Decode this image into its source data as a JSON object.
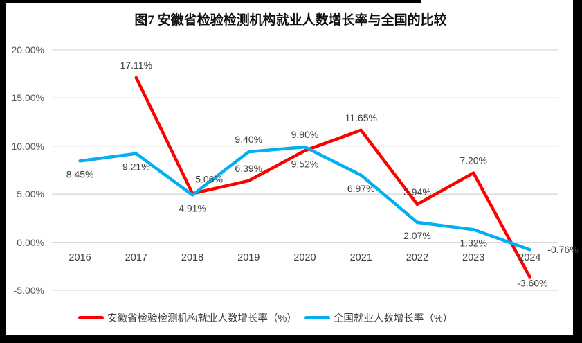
{
  "frame": {
    "color": "#000000",
    "background": "#FFFFFF"
  },
  "chart_data": {
    "type": "line",
    "title": "图7  安徽省检验检测机构就业人数增长率与全国的比较",
    "categories": [
      "2016",
      "2017",
      "2018",
      "2019",
      "2020",
      "2021",
      "2022",
      "2023",
      "2024"
    ],
    "series": [
      {
        "name": "安徽省检验检测机构就业人数增长率（%）",
        "color": "#FF0000",
        "values": [
          null,
          17.11,
          5.06,
          6.39,
          9.52,
          11.65,
          3.94,
          7.2,
          -3.6
        ],
        "labels": [
          "",
          "17.11%",
          "5.06%",
          "6.39%",
          "9.52%",
          "11.65%",
          "3.94%",
          "7.20%",
          "-3.60%"
        ],
        "label_positions": [
          null,
          "above",
          "above-right",
          "above",
          "below",
          "above",
          "above",
          "above",
          "below-near"
        ]
      },
      {
        "name": "全国就业人数增长率（%）",
        "color": "#00B0F0",
        "values": [
          8.45,
          9.21,
          4.91,
          9.4,
          9.9,
          6.97,
          2.07,
          1.32,
          -0.76
        ],
        "labels": [
          "8.45%",
          "9.21%",
          "4.91%",
          "9.40%",
          "9.90%",
          "6.97%",
          "2.07%",
          "1.32%",
          "-0.76%"
        ],
        "label_positions": [
          "below",
          "below",
          "below",
          "above",
          "above",
          "below",
          "below",
          "below",
          "right"
        ]
      }
    ],
    "y_axis": {
      "tick_labels": [
        "20.00%",
        "15.00%",
        "10.00%",
        "5.00%",
        "0.00%",
        "-5.00%"
      ],
      "tick_values": [
        20,
        15,
        10,
        5,
        0,
        -5
      ]
    },
    "ylim": [
      -5,
      20
    ],
    "grid": true,
    "gridline_color": "#D9D9D9",
    "label_color": "#404040",
    "tick_color": "#595959",
    "legend_position": "bottom"
  }
}
